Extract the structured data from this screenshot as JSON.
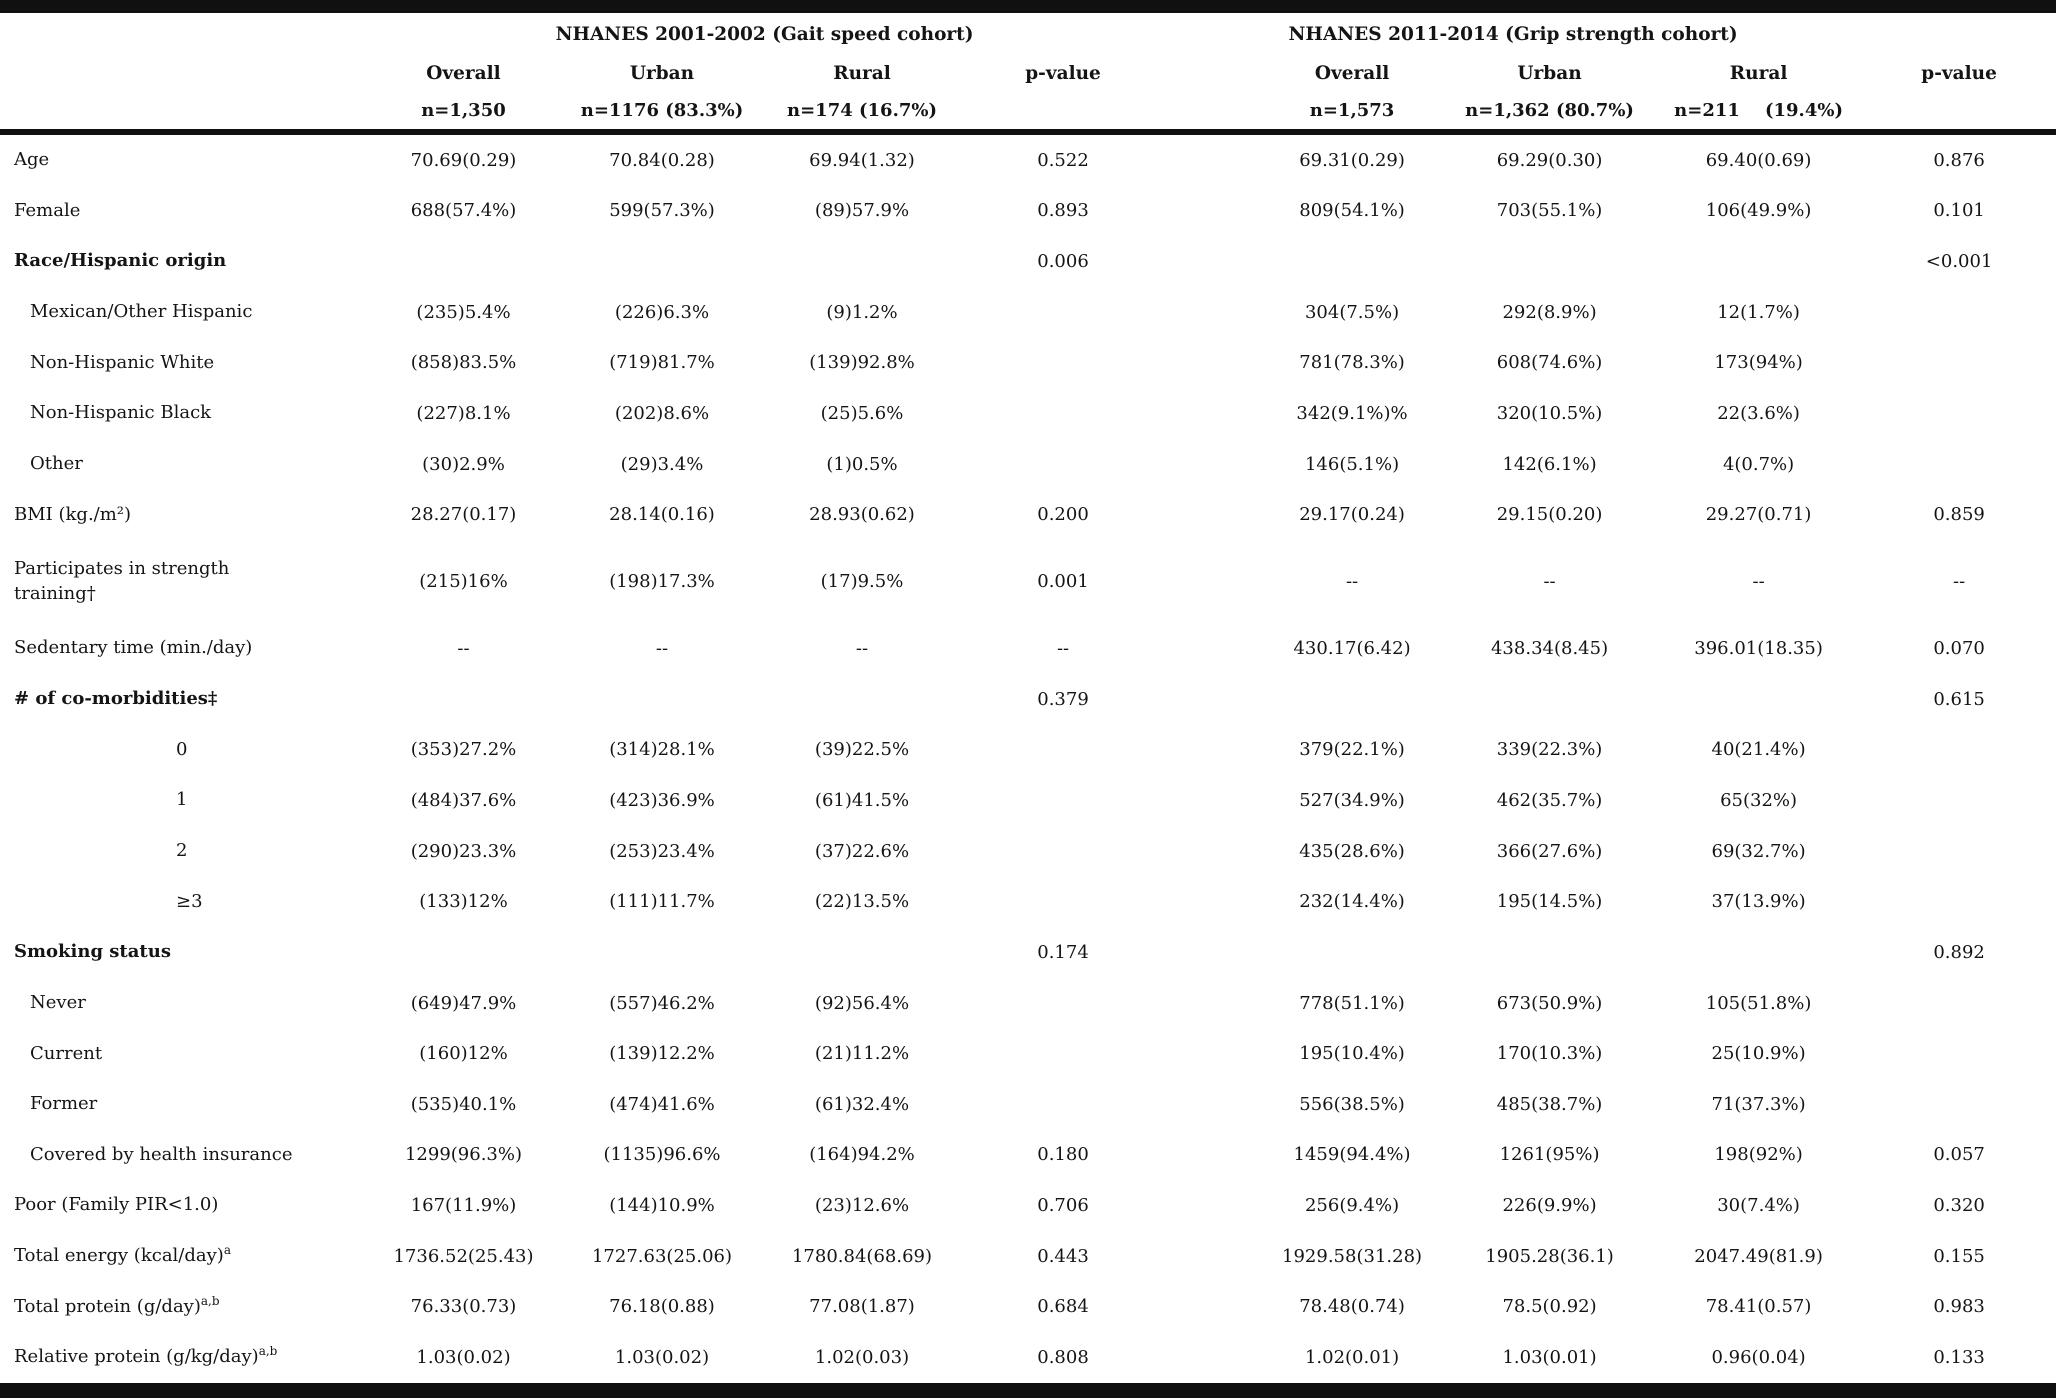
{
  "header": {
    "cohort1_title": "NHANES 2001-2002 (Gait speed cohort)",
    "cohort2_title": "NHANES 2011-2014 (Grip strength cohort)",
    "col_labels": [
      "Overall",
      "Urban",
      "Rural",
      "p-value",
      "Overall",
      "Urban",
      "Rural",
      "p-value"
    ],
    "n_labels": [
      "n=1,350",
      "n=1176 (83.3%)",
      "n=174 (16.7%)",
      "",
      "n=1,573",
      "n=1,362 (80.7%)",
      "n=211    (19.4%)",
      ""
    ]
  },
  "colors": {
    "rule": "#101010",
    "text": "#141414",
    "background": "#ffffff"
  },
  "rows": [
    {
      "label": "Age",
      "indent": 0,
      "bold": false,
      "cells": [
        "70.69(0.29)",
        "70.84(0.28)",
        "69.94(1.32)",
        "0.522",
        "69.31(0.29)",
        "69.29(0.30)",
        "69.40(0.69)",
        "0.876"
      ]
    },
    {
      "label": "Female",
      "indent": 0,
      "bold": false,
      "cells": [
        "688(57.4%)",
        "599(57.3%)",
        "(89)57.9%",
        "0.893",
        "809(54.1%)",
        "703(55.1%)",
        "106(49.9%)",
        "0.101"
      ]
    },
    {
      "label": "Race/Hispanic origin",
      "indent": 0,
      "bold": true,
      "cells": [
        "",
        "",
        "",
        "0.006",
        "",
        "",
        "",
        "<0.001"
      ]
    },
    {
      "label": "Mexican/Other Hispanic",
      "indent": 1,
      "bold": false,
      "cells": [
        "(235)5.4%",
        "(226)6.3%",
        "(9)1.2%",
        "",
        "304(7.5%)",
        "292(8.9%)",
        "12(1.7%)",
        ""
      ]
    },
    {
      "label": "Non-Hispanic White",
      "indent": 1,
      "bold": false,
      "cells": [
        "(858)83.5%",
        "(719)81.7%",
        "(139)92.8%",
        "",
        "781(78.3%)",
        "608(74.6%)",
        "173(94%)",
        ""
      ]
    },
    {
      "label": "Non-Hispanic Black",
      "indent": 1,
      "bold": false,
      "cells": [
        "(227)8.1%",
        "(202)8.6%",
        "(25)5.6%",
        "",
        "342(9.1%)%",
        "320(10.5%)",
        "22(3.6%)",
        ""
      ]
    },
    {
      "label": "Other",
      "indent": 1,
      "bold": false,
      "cells": [
        "(30)2.9%",
        "(29)3.4%",
        "(1)0.5%",
        "",
        "146(5.1%)",
        "142(6.1%)",
        "4(0.7%)",
        ""
      ]
    },
    {
      "label": "BMI (kg./m²)",
      "indent": 0,
      "bold": false,
      "cells": [
        "28.27(0.17)",
        "28.14(0.16)",
        "28.93(0.62)",
        "0.200",
        "29.17(0.24)",
        "29.15(0.20)",
        "29.27(0.71)",
        "0.859"
      ]
    },
    {
      "label": "Participates in strength\ntraining†",
      "indent": 0,
      "bold": false,
      "tall": true,
      "cells": [
        "(215)16%",
        "(198)17.3%",
        "(17)9.5%",
        "0.001",
        "--",
        "--",
        "--",
        "--"
      ]
    },
    {
      "label": "Sedentary time (min./day)",
      "indent": 0,
      "bold": false,
      "cells": [
        "--",
        "--",
        "--",
        "--",
        "430.17(6.42)",
        "438.34(8.45)",
        "396.01(18.35)",
        "0.070"
      ]
    },
    {
      "label": "# of co-morbidities‡",
      "indent": 0,
      "bold": true,
      "cells": [
        "",
        "",
        "",
        "0.379",
        "",
        "",
        "",
        "0.615"
      ]
    },
    {
      "label": "0",
      "indent": 2,
      "bold": false,
      "cells": [
        "(353)27.2%",
        "(314)28.1%",
        "(39)22.5%",
        "",
        "379(22.1%)",
        "339(22.3%)",
        "40(21.4%)",
        ""
      ]
    },
    {
      "label": "1",
      "indent": 2,
      "bold": false,
      "cells": [
        "(484)37.6%",
        "(423)36.9%",
        "(61)41.5%",
        "",
        "527(34.9%)",
        "462(35.7%)",
        "65(32%)",
        ""
      ]
    },
    {
      "label": "2",
      "indent": 2,
      "bold": false,
      "cells": [
        "(290)23.3%",
        "(253)23.4%",
        "(37)22.6%",
        "",
        "435(28.6%)",
        "366(27.6%)",
        "69(32.7%)",
        ""
      ]
    },
    {
      "label": "≥3",
      "indent": 2,
      "bold": false,
      "cells": [
        "(133)12%",
        "(111)11.7%",
        "(22)13.5%",
        "",
        "232(14.4%)",
        "195(14.5%)",
        "37(13.9%)",
        ""
      ]
    },
    {
      "label": "Smoking status",
      "indent": 0,
      "bold": true,
      "cells": [
        "",
        "",
        "",
        "0.174",
        "",
        "",
        "",
        "0.892"
      ]
    },
    {
      "label": "Never",
      "indent": 1,
      "bold": false,
      "cells": [
        "(649)47.9%",
        "(557)46.2%",
        "(92)56.4%",
        "",
        "778(51.1%)",
        "673(50.9%)",
        "105(51.8%)",
        ""
      ]
    },
    {
      "label": "Current",
      "indent": 1,
      "bold": false,
      "cells": [
        "(160)12%",
        "(139)12.2%",
        "(21)11.2%",
        "",
        "195(10.4%)",
        "170(10.3%)",
        "25(10.9%)",
        ""
      ]
    },
    {
      "label": "Former",
      "indent": 1,
      "bold": false,
      "cells": [
        "(535)40.1%",
        "(474)41.6%",
        "(61)32.4%",
        "",
        "556(38.5%)",
        "485(38.7%)",
        "71(37.3%)",
        ""
      ]
    },
    {
      "label": "Covered by health insurance",
      "indent": 1,
      "bold": false,
      "cells": [
        "1299(96.3%)",
        "(1135)96.6%",
        "(164)94.2%",
        "0.180",
        "1459(94.4%)",
        "1261(95%)",
        "198(92%)",
        "0.057"
      ]
    },
    {
      "label": "Poor (Family PIR<1.0)",
      "indent": 0,
      "bold": false,
      "cells": [
        "167(11.9%)",
        "(144)10.9%",
        "(23)12.6%",
        "0.706",
        "256(9.4%)",
        "226(9.9%)",
        "30(7.4%)",
        "0.320"
      ]
    },
    {
      "label": "Total energy (kcal/day)",
      "sup": "a",
      "indent": 0,
      "bold": false,
      "cells": [
        "1736.52(25.43)",
        "1727.63(25.06)",
        "1780.84(68.69)",
        "0.443",
        "1929.58(31.28)",
        "1905.28(36.1)",
        "2047.49(81.9)",
        "0.155"
      ]
    },
    {
      "label": "Total protein (g/day)",
      "sup": "a,b",
      "indent": 0,
      "bold": false,
      "cells": [
        "76.33(0.73)",
        "76.18(0.88)",
        "77.08(1.87)",
        "0.684",
        "78.48(0.74)",
        "78.5(0.92)",
        "78.41(0.57)",
        "0.983"
      ]
    },
    {
      "label": "Relative protein (g/kg/day)",
      "sup": "a,b",
      "indent": 0,
      "bold": false,
      "cells": [
        "1.03(0.02)",
        "1.03(0.02)",
        "1.02(0.03)",
        "0.808",
        "1.02(0.01)",
        "1.03(0.01)",
        "0.96(0.04)",
        "0.133"
      ]
    }
  ]
}
